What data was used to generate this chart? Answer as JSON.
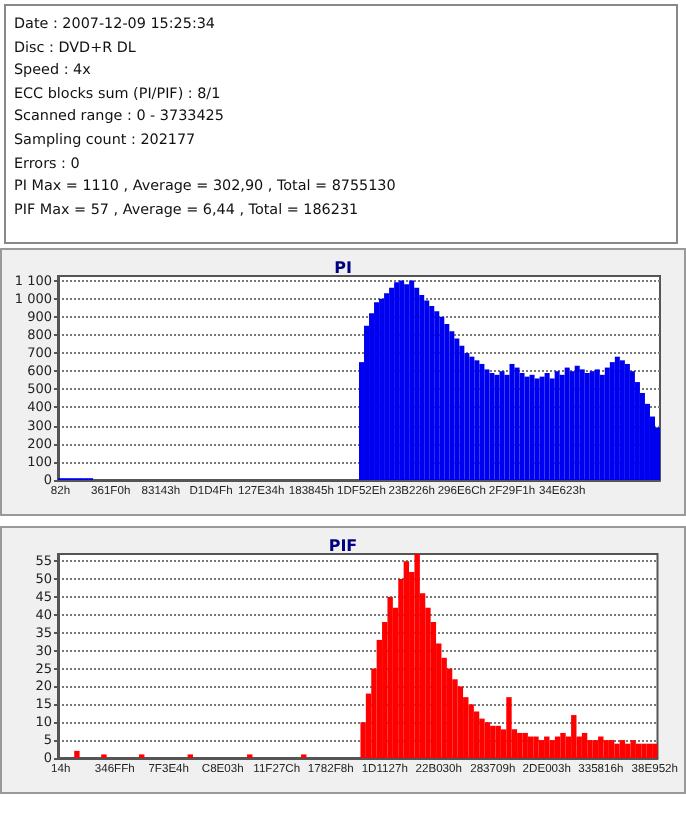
{
  "chart_data": [
    {
      "type": "other",
      "annotations": [
        "Date : 2007-12-09 15:25:34",
        "Disc : DVD+R DL",
        "Speed : 4x",
        "ECC blocks sum (PI/PIF) : 8/1",
        "Scanned range : 0 - 3733425",
        "Sampling count : 202177",
        "Errors : 0",
        "PI Max = 1110 , Average = 302,90 , Total = 8755130",
        "PIF Max = 57 , Average = 6,44 , Total = 186231"
      ]
    },
    {
      "type": "bar",
      "title": "PI",
      "color": "#0000f0",
      "grid": "y",
      "ylim": [
        0,
        1125
      ],
      "yticks": [
        0,
        100,
        200,
        300,
        400,
        500,
        600,
        700,
        800,
        900,
        {
          "value": 1000,
          "label": "1 000"
        },
        {
          "value": 1100,
          "label": "1 100"
        }
      ],
      "categories": [
        "82h",
        null,
        null,
        null,
        null,
        null,
        null,
        null,
        null,
        null,
        "361F0h",
        null,
        null,
        null,
        null,
        null,
        null,
        null,
        null,
        null,
        "83143h",
        null,
        null,
        null,
        null,
        null,
        null,
        null,
        null,
        null,
        "D1D4Fh",
        null,
        null,
        null,
        null,
        null,
        null,
        null,
        null,
        null,
        "127E34h",
        null,
        null,
        null,
        null,
        null,
        null,
        null,
        null,
        null,
        "183845h",
        null,
        null,
        null,
        null,
        null,
        null,
        null,
        null,
        null,
        "1DF52Eh",
        null,
        null,
        null,
        null,
        null,
        null,
        null,
        null,
        null,
        "23B226h",
        null,
        null,
        null,
        null,
        null,
        null,
        null,
        null,
        null,
        "296E6Ch",
        null,
        null,
        null,
        null,
        null,
        null,
        null,
        null,
        null,
        "2F29F1h",
        null,
        null,
        null,
        null,
        null,
        null,
        null,
        null,
        null,
        "34E623h",
        null,
        null,
        null,
        null,
        null,
        null,
        null,
        null,
        null,
        null,
        null,
        null,
        null,
        null,
        null,
        null,
        null,
        null,
        null
      ],
      "values": [
        10,
        10,
        10,
        10,
        10,
        10,
        10,
        0,
        0,
        0,
        0,
        0,
        0,
        0,
        0,
        0,
        0,
        0,
        0,
        0,
        0,
        0,
        0,
        0,
        0,
        0,
        0,
        0,
        0,
        0,
        0,
        0,
        0,
        0,
        0,
        0,
        0,
        0,
        0,
        0,
        0,
        0,
        0,
        0,
        0,
        0,
        0,
        0,
        0,
        0,
        0,
        0,
        0,
        0,
        0,
        0,
        0,
        0,
        0,
        0,
        650,
        850,
        920,
        980,
        1000,
        1030,
        1060,
        1090,
        1100,
        1080,
        1100,
        1060,
        1020,
        990,
        960,
        930,
        900,
        860,
        820,
        780,
        740,
        700,
        680,
        660,
        640,
        610,
        590,
        580,
        600,
        580,
        640,
        620,
        590,
        570,
        580,
        560,
        570,
        590,
        560,
        600,
        580,
        620,
        600,
        630,
        610,
        590,
        600,
        610,
        580,
        620,
        650,
        680,
        660,
        640,
        600,
        540,
        480,
        420,
        350,
        290
      ]
    },
    {
      "type": "bar",
      "title": "PIF",
      "color": "#ff0000",
      "grid": "y",
      "ylim": [
        0,
        57
      ],
      "yticks": [
        0,
        5,
        10,
        15,
        20,
        25,
        30,
        35,
        40,
        45,
        50,
        55
      ],
      "categories": [
        "14h",
        null,
        null,
        null,
        null,
        null,
        null,
        null,
        null,
        null,
        "346FFh",
        null,
        null,
        null,
        null,
        null,
        null,
        null,
        null,
        null,
        "7F3E4h",
        null,
        null,
        null,
        null,
        null,
        null,
        null,
        null,
        null,
        "C8E03h",
        null,
        null,
        null,
        null,
        null,
        null,
        null,
        null,
        null,
        "11F27Ch",
        null,
        null,
        null,
        null,
        null,
        null,
        null,
        null,
        null,
        "1782F8h",
        null,
        null,
        null,
        null,
        null,
        null,
        null,
        null,
        null,
        "1D1127h",
        null,
        null,
        null,
        null,
        null,
        null,
        null,
        null,
        null,
        "22B030h",
        null,
        null,
        null,
        null,
        null,
        null,
        null,
        null,
        null,
        "283709h",
        null,
        null,
        null,
        null,
        null,
        null,
        null,
        null,
        null,
        "2DE003h",
        null,
        null,
        null,
        null,
        null,
        null,
        null,
        null,
        null,
        "335816h",
        null,
        null,
        null,
        null,
        null,
        null,
        null,
        null,
        null,
        "38E952h"
      ],
      "values": [
        0,
        0,
        0,
        2,
        0,
        0,
        0,
        0,
        1,
        0,
        0,
        0,
        0,
        0,
        0,
        1,
        0,
        0,
        0,
        0,
        0,
        0,
        0,
        0,
        1,
        0,
        0,
        0,
        0,
        0,
        0,
        0,
        0,
        0,
        0,
        1,
        0,
        0,
        0,
        0,
        0,
        0,
        0,
        0,
        0,
        1,
        0,
        0,
        0,
        0,
        0,
        0,
        0,
        0,
        0,
        0,
        10,
        18,
        25,
        33,
        38,
        45,
        42,
        50,
        55,
        52,
        57,
        46,
        42,
        38,
        32,
        28,
        25,
        22,
        20,
        17,
        15,
        13,
        11,
        10,
        9,
        9,
        8,
        17,
        8,
        7,
        7,
        6,
        6,
        5,
        6,
        5,
        6,
        7,
        6,
        12,
        6,
        7,
        5,
        5,
        6,
        5,
        5,
        4,
        5,
        4,
        5,
        4,
        4,
        4,
        4
      ]
    }
  ]
}
